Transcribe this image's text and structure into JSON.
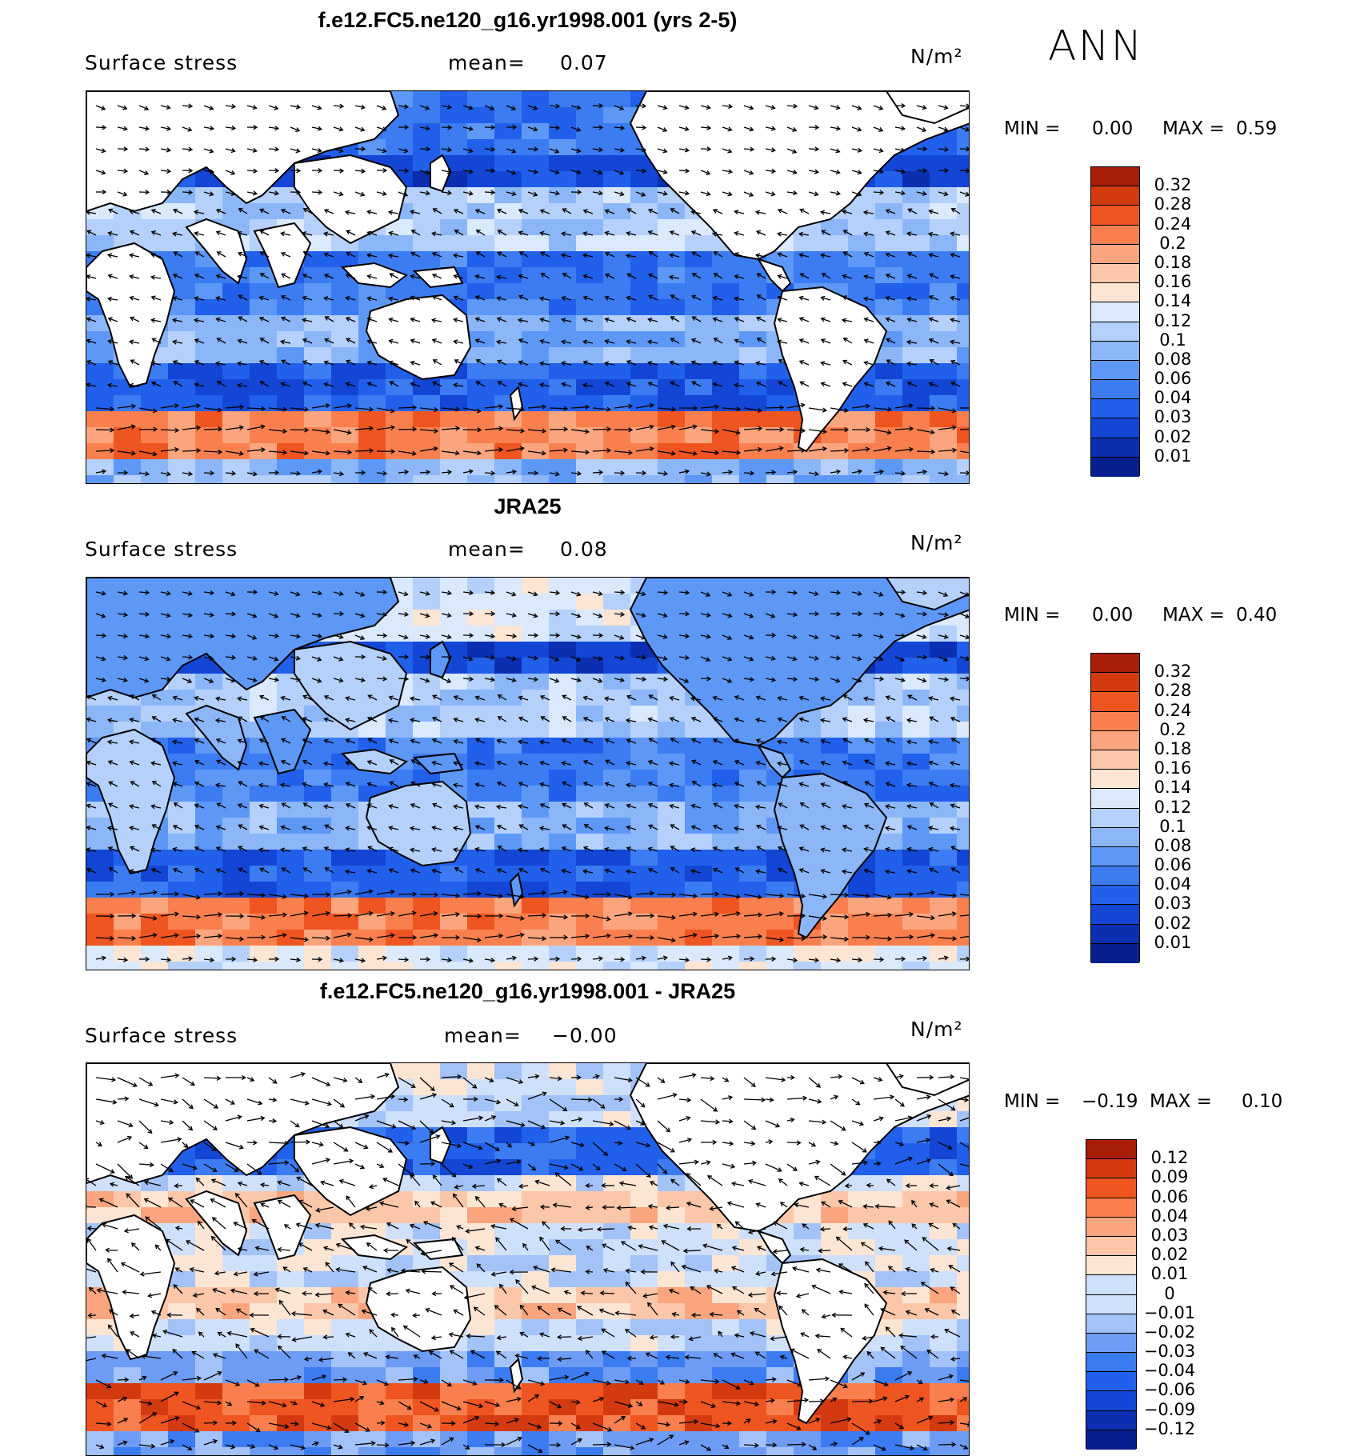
{
  "season": "ANN",
  "palette": {
    "seq": [
      "#08208e",
      "#0b2fb0",
      "#1346d4",
      "#2160ea",
      "#3c7cf2",
      "#5e98f6",
      "#8bb6f8",
      "#b5d0fa",
      "#dbe9fc",
      "#fde5d4",
      "#fcc6a8",
      "#fba57f",
      "#f9804e",
      "#ef5520",
      "#d33a10",
      "#a81d08"
    ],
    "div": [
      "#08208e",
      "#0b2fb0",
      "#1346d4",
      "#2160ea",
      "#3c7cf2",
      "#6e9cf4",
      "#a3c2f8",
      "#cfe0fb",
      "#fde5d4",
      "#fcc6a8",
      "#fba57f",
      "#f9804e",
      "#ef5520",
      "#d33a10",
      "#a81d08"
    ]
  },
  "panels": [
    {
      "title": "f.e12.FC5.ne120_g16.yr1998.001 (yrs 2-5)",
      "field": "Surface stress",
      "mean_label": "mean=",
      "mean_value": "0.07",
      "units": "N/m²",
      "min_label": "MIN =",
      "min_value": "0.00",
      "max_label": "MAX =",
      "max_value": "0.59",
      "colorbar": [
        "0.32",
        "0.28",
        "0.24",
        "0.2",
        "0.18",
        "0.16",
        "0.14",
        "0.12",
        "0.1",
        "0.08",
        "0.06",
        "0.04",
        "0.03",
        "0.02",
        "0.01"
      ],
      "map_kind": "model"
    },
    {
      "title": "JRA25",
      "field": "Surface stress",
      "mean_label": "mean=",
      "mean_value": "0.08",
      "units": "N/m²",
      "min_label": "MIN =",
      "min_value": "0.00",
      "max_label": "MAX =",
      "max_value": "0.40",
      "colorbar": [
        "0.32",
        "0.28",
        "0.24",
        "0.2",
        "0.18",
        "0.16",
        "0.14",
        "0.12",
        "0.1",
        "0.08",
        "0.06",
        "0.04",
        "0.03",
        "0.02",
        "0.01"
      ],
      "map_kind": "obs"
    },
    {
      "title": "f.e12.FC5.ne120_g16.yr1998.001 - JRA25",
      "field": "Surface stress",
      "mean_label": "mean=",
      "mean_value": "−0.00",
      "units": "N/m²",
      "min_label": "MIN =",
      "min_value": "−0.19",
      "max_label": "MAX =",
      "max_value": "0.10",
      "colorbar": [
        "0.12",
        "0.09",
        "0.06",
        "0.04",
        "0.03",
        "0.02",
        "0.01",
        "0",
        "−0.01",
        "−0.02",
        "−0.03",
        "−0.04",
        "−0.06",
        "−0.09",
        "−0.12"
      ],
      "map_kind": "diff"
    }
  ]
}
